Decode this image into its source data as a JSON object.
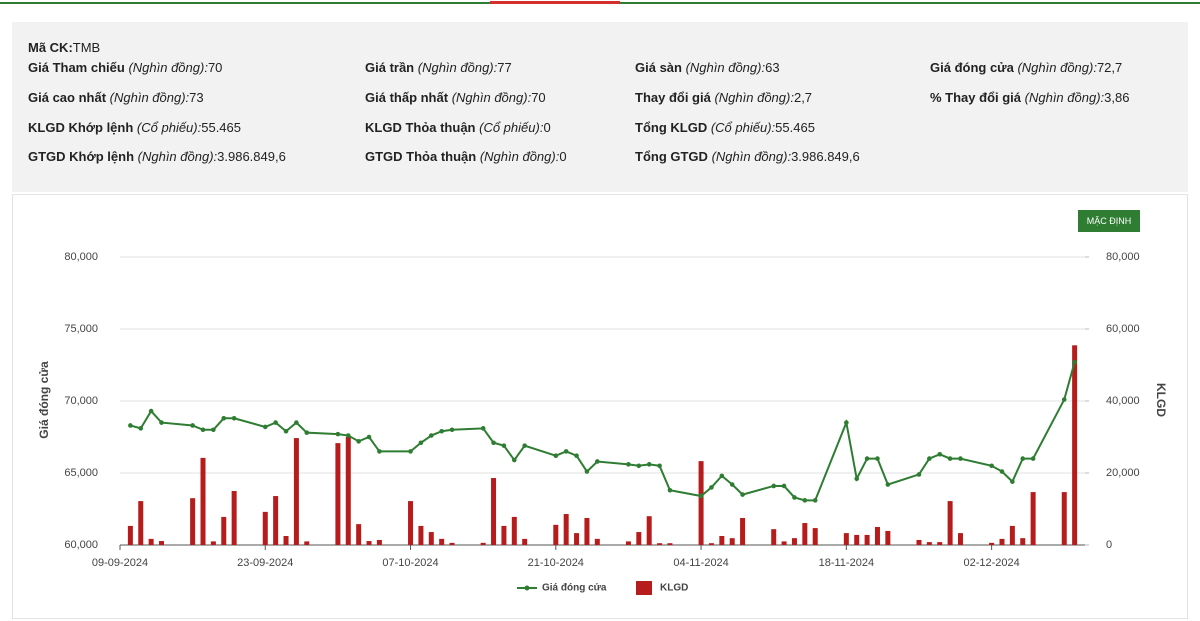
{
  "info": {
    "code": {
      "label": "Mã CK:",
      "value": "TMB"
    },
    "rows": [
      [
        {
          "label": "Giá Tham chiếu",
          "unit": "(Nghìn đồng):",
          "value": "70"
        },
        {
          "label": "Giá trần",
          "unit": "(Nghìn đồng):",
          "value": "77"
        },
        {
          "label": "Giá sàn",
          "unit": "(Nghìn đồng):",
          "value": "63"
        },
        {
          "label": "Giá đóng cửa",
          "unit": "(Nghìn đồng):",
          "value": "72,7"
        }
      ],
      [
        {
          "label": "Giá cao nhất",
          "unit": "(Nghìn đồng):",
          "value": "73"
        },
        {
          "label": "Giá thấp nhất",
          "unit": "(Nghìn đồng):",
          "value": "70"
        },
        {
          "label": "Thay đổi giá",
          "unit": "(Nghìn đồng):",
          "value": "2,7"
        },
        {
          "label": "% Thay đổi giá",
          "unit": "(Nghìn đồng):",
          "value": "3,86"
        }
      ],
      [
        {
          "label": "KLGD Khớp lệnh",
          "unit": "(Cổ phiếu):",
          "value": "55.465"
        },
        {
          "label": "KLGD Thỏa thuận",
          "unit": "(Cổ phiếu):",
          "value": "0"
        },
        {
          "label": "Tổng KLGD",
          "unit": "(Cổ phiếu):",
          "value": "55.465"
        }
      ],
      [
        {
          "label": "GTGD Khớp lệnh",
          "unit": "(Nghìn đồng):",
          "value": "3.986.849,6"
        },
        {
          "label": "GTGD Thỏa thuận",
          "unit": "(Nghìn đồng):",
          "value": "0"
        },
        {
          "label": "Tổng GTGD",
          "unit": "(Nghìn đồng):",
          "value": "3.986.849,6"
        }
      ]
    ]
  },
  "controls": {
    "default_button": "MẶC ĐỊNH"
  },
  "chart_data": {
    "type": "combo",
    "y_label": "Giá đóng cửa",
    "y2_label": "KLGD",
    "x": [
      "10-09-2024",
      "11-09-2024",
      "12-09-2024",
      "13-09-2024",
      "16-09-2024",
      "17-09-2024",
      "18-09-2024",
      "19-09-2024",
      "20-09-2024",
      "23-09-2024",
      "24-09-2024",
      "25-09-2024",
      "26-09-2024",
      "27-09-2024",
      "30-09-2024",
      "01-10-2024",
      "02-10-2024",
      "03-10-2024",
      "04-10-2024",
      "07-10-2024",
      "08-10-2024",
      "09-10-2024",
      "10-10-2024",
      "11-10-2024",
      "14-10-2024",
      "15-10-2024",
      "16-10-2024",
      "17-10-2024",
      "18-10-2024",
      "21-10-2024",
      "22-10-2024",
      "23-10-2024",
      "24-10-2024",
      "25-10-2024",
      "28-10-2024",
      "29-10-2024",
      "30-10-2024",
      "31-10-2024",
      "01-11-2024",
      "04-11-2024",
      "05-11-2024",
      "06-11-2024",
      "07-11-2024",
      "08-11-2024",
      "11-11-2024",
      "12-11-2024",
      "13-11-2024",
      "14-11-2024",
      "15-11-2024",
      "18-11-2024",
      "19-11-2024",
      "20-11-2024",
      "21-11-2024",
      "22-11-2024",
      "25-11-2024",
      "26-11-2024",
      "27-11-2024",
      "28-11-2024",
      "29-11-2024",
      "02-12-2024",
      "03-12-2024",
      "04-12-2024",
      "05-12-2024",
      "06-12-2024",
      "09-12-2024",
      "10-12-2024"
    ],
    "xlim": [
      "09-09-2024",
      "11-12-2024"
    ],
    "xticks": [
      "09-09-2024",
      "23-09-2024",
      "07-10-2024",
      "21-10-2024",
      "04-11-2024",
      "18-11-2024",
      "02-12-2024"
    ],
    "series": [
      {
        "name": "Giá đóng cửa",
        "type": "line",
        "color": "#2e7d32",
        "values": [
          68300,
          68100,
          69300,
          68500,
          68300,
          68000,
          68000,
          68800,
          68800,
          68200,
          68500,
          67900,
          68500,
          67800,
          67700,
          67600,
          67200,
          67500,
          66500,
          66500,
          67100,
          67600,
          67900,
          68000,
          68100,
          67100,
          66900,
          65900,
          66900,
          66200,
          66500,
          66200,
          65100,
          65800,
          65600,
          65500,
          65600,
          65500,
          63800,
          63400,
          64000,
          64800,
          64200,
          63500,
          64100,
          64100,
          63300,
          63100,
          63100,
          68500,
          64600,
          66000,
          66000,
          64200,
          64900,
          66000,
          66300,
          66000,
          66000,
          65500,
          65100,
          64400,
          66000,
          66000,
          70100,
          72700
        ]
      },
      {
        "name": "KLGD",
        "type": "bar",
        "color": "#b71c1c",
        "axis": "y2",
        "values": [
          5300,
          12200,
          1700,
          1100,
          13000,
          24200,
          1000,
          7800,
          15000,
          9200,
          13600,
          2500,
          29700,
          1000,
          28300,
          30000,
          5800,
          1100,
          1400,
          12200,
          5300,
          3600,
          1700,
          600,
          600,
          18600,
          5300,
          7800,
          1700,
          5600,
          8600,
          3300,
          7500,
          1700,
          1000,
          3600,
          8000,
          500,
          500,
          23300,
          500,
          2500,
          1900,
          7500,
          4400,
          1000,
          1900,
          6100,
          4700,
          3300,
          2800,
          2800,
          5000,
          3900,
          1400,
          800,
          800,
          12200,
          3300,
          600,
          1700,
          5300,
          1900,
          14700,
          14700,
          55465
        ]
      }
    ],
    "ylim": [
      60000,
      80000
    ],
    "yticks": [
      {
        "value": 60000,
        "label": "60,000"
      },
      {
        "value": 65000,
        "label": "65,000"
      },
      {
        "value": 70000,
        "label": "70,000"
      },
      {
        "value": 75000,
        "label": "75,000"
      },
      {
        "value": 80000,
        "label": "80,000"
      }
    ],
    "y2lim": [
      0,
      80000
    ],
    "y2ticks": [
      0,
      {
        "value": 20000,
        "label": "20,000"
      },
      {
        "value": 40000,
        "label": "40,000"
      },
      {
        "value": 60000,
        "label": "60,000"
      },
      {
        "value": 80000,
        "label": "80,000"
      }
    ],
    "grid": true,
    "legend": "bottom"
  }
}
